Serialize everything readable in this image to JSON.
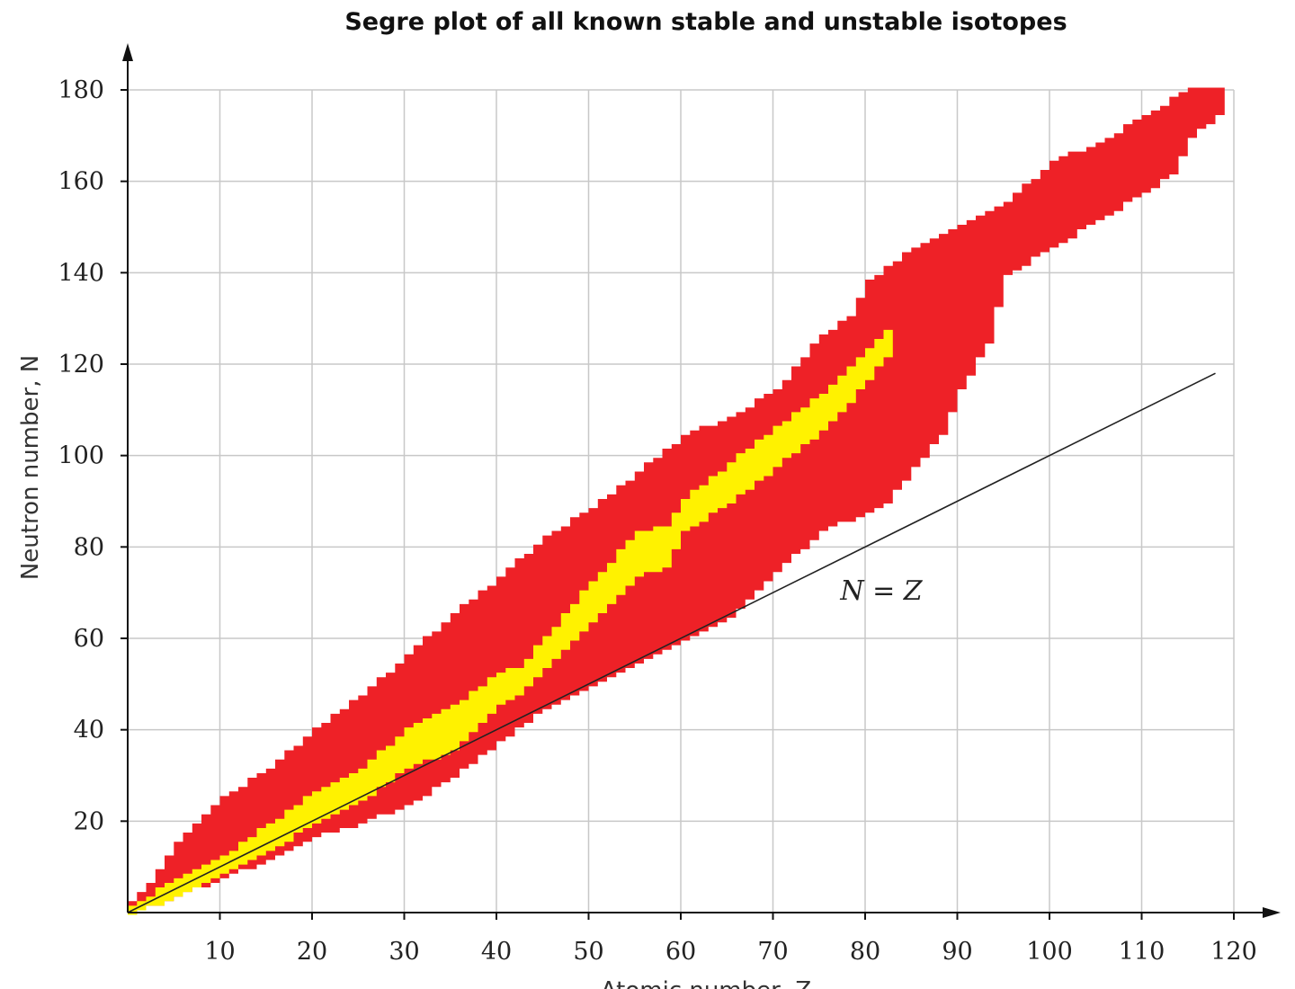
{
  "chart_data": {
    "type": "area",
    "title": "Segre plot of all known stable and unstable isotopes",
    "xlabel": "Atomic number, Z",
    "ylabel": "Neutron number, N",
    "xlim": [
      0,
      120
    ],
    "ylim": [
      0,
      180
    ],
    "xticks": [
      "10",
      "20",
      "30",
      "40",
      "50",
      "60",
      "70",
      "80",
      "90",
      "100",
      "110",
      "120"
    ],
    "yticks": [
      "20",
      "40",
      "60",
      "80",
      "100",
      "120",
      "140",
      "160",
      "180"
    ],
    "grid": true,
    "colors": {
      "unstable": "#ee2127",
      "stable": "#fff200",
      "line": "#222222",
      "grid": "#c8c8c8"
    },
    "series": [
      {
        "role": "unstable",
        "upper": [
          [
            0,
            2
          ],
          [
            2,
            6
          ],
          [
            5,
            15
          ],
          [
            10,
            25
          ],
          [
            15,
            31
          ],
          [
            20,
            40
          ],
          [
            25,
            47
          ],
          [
            30,
            56
          ],
          [
            35,
            65
          ],
          [
            40,
            73
          ],
          [
            45,
            82
          ],
          [
            50,
            88
          ],
          [
            55,
            96
          ],
          [
            60,
            104
          ],
          [
            65,
            108
          ],
          [
            70,
            114
          ],
          [
            75,
            126
          ],
          [
            78,
            130
          ],
          [
            80,
            138
          ],
          [
            85,
            145
          ],
          [
            90,
            150
          ],
          [
            95,
            155
          ],
          [
            100,
            164
          ],
          [
            105,
            168
          ],
          [
            110,
            174
          ],
          [
            115,
            180
          ],
          [
            118,
            180
          ]
        ],
        "lower": [
          [
            0,
            0
          ],
          [
            5,
            4
          ],
          [
            10,
            8
          ],
          [
            15,
            12
          ],
          [
            20,
            17
          ],
          [
            25,
            20
          ],
          [
            30,
            24
          ],
          [
            35,
            30
          ],
          [
            40,
            38
          ],
          [
            45,
            45
          ],
          [
            50,
            50
          ],
          [
            55,
            55
          ],
          [
            60,
            60
          ],
          [
            65,
            65
          ],
          [
            70,
            75
          ],
          [
            75,
            84
          ],
          [
            80,
            88
          ],
          [
            82,
            90
          ],
          [
            85,
            98
          ],
          [
            88,
            105
          ],
          [
            90,
            115
          ],
          [
            93,
            125
          ],
          [
            95,
            140
          ],
          [
            100,
            146
          ],
          [
            105,
            152
          ],
          [
            110,
            158
          ],
          [
            113,
            162
          ],
          [
            115,
            170
          ],
          [
            118,
            175
          ]
        ]
      },
      {
        "role": "stable",
        "upper": [
          [
            0,
            1
          ],
          [
            5,
            7
          ],
          [
            10,
            12
          ],
          [
            15,
            19
          ],
          [
            20,
            26
          ],
          [
            25,
            31
          ],
          [
            30,
            40
          ],
          [
            35,
            45
          ],
          [
            40,
            52
          ],
          [
            42,
            53
          ],
          [
            45,
            60
          ],
          [
            50,
            72
          ],
          [
            55,
            83
          ],
          [
            58,
            84
          ],
          [
            60,
            90
          ],
          [
            65,
            98
          ],
          [
            70,
            106
          ],
          [
            75,
            113
          ],
          [
            78,
            119
          ],
          [
            82,
            127
          ]
        ],
        "lower": [
          [
            0,
            0
          ],
          [
            5,
            4
          ],
          [
            10,
            9
          ],
          [
            15,
            14
          ],
          [
            20,
            20
          ],
          [
            25,
            25
          ],
          [
            30,
            32
          ],
          [
            35,
            36
          ],
          [
            40,
            46
          ],
          [
            42,
            48
          ],
          [
            45,
            54
          ],
          [
            50,
            64
          ],
          [
            55,
            74
          ],
          [
            58,
            76
          ],
          [
            60,
            84
          ],
          [
            65,
            90
          ],
          [
            70,
            98
          ],
          [
            75,
            106
          ],
          [
            78,
            112
          ],
          [
            82,
            122
          ]
        ]
      }
    ],
    "reference_line": {
      "label": "N = Z",
      "x": [
        0,
        118
      ],
      "y": [
        0,
        118
      ]
    }
  }
}
